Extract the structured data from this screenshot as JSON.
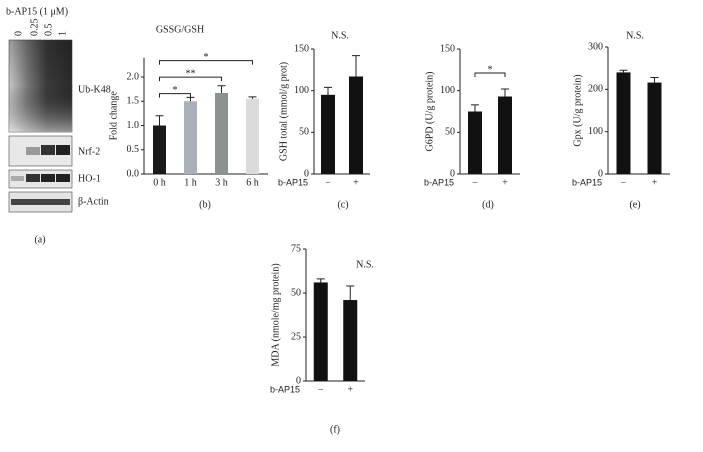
{
  "blot": {
    "treatment": "b-AP15 (1 μM)",
    "doses": [
      "0",
      "0.25",
      "0.5",
      "1"
    ],
    "bands": [
      "Ub-K48",
      "Nrf-2",
      "HO-1",
      "β-Actin"
    ],
    "label": "(a)"
  },
  "chart_data": [
    {
      "type": "bar",
      "title": "GSSG/GSH",
      "ylabel": "Fold change",
      "label": "(b)",
      "categories": [
        "0 h",
        "1 h",
        "3 h",
        "6 h"
      ],
      "values": [
        1.0,
        1.5,
        1.67,
        1.55
      ],
      "errors": [
        0.2,
        0.08,
        0.15,
        0.04
      ],
      "colors": [
        "#1a1a1a",
        "#a9b0b8",
        "#8c9292",
        "#d9dcd8"
      ],
      "ylim": [
        0,
        2.4
      ],
      "yticks": [
        {
          "value": 0,
          "label": "0.0"
        },
        {
          "value": 0.5,
          "label": "0.5"
        },
        {
          "value": 1,
          "label": "1.0"
        },
        {
          "value": 1.5,
          "label": "1.5"
        },
        {
          "value": 2,
          "label": "2.0"
        }
      ],
      "annotations": [
        {
          "text": "*",
          "from": "0 h",
          "to": "1 h"
        },
        {
          "text": "**",
          "from": "0 h",
          "to": "3 h"
        },
        {
          "text": "*",
          "from": "0 h",
          "to": "6 h"
        }
      ]
    },
    {
      "type": "bar",
      "title": "N.S.",
      "ylabel": "GSH total (mmol/g prot)",
      "xlabel": "b-AP15",
      "label": "(c)",
      "categories": [
        "−",
        "+"
      ],
      "values": [
        95,
        117
      ],
      "errors": [
        9,
        25
      ],
      "colors": [
        "#111111",
        "#111111"
      ],
      "ylim": [
        0,
        150
      ],
      "yticks": [
        0,
        50,
        100,
        150
      ]
    },
    {
      "type": "bar",
      "ylabel": "G6PD (U/g protein)",
      "xlabel": "b-AP15",
      "label": "(d)",
      "categories": [
        "−",
        "+"
      ],
      "values": [
        75,
        93
      ],
      "errors": [
        8,
        9
      ],
      "colors": [
        "#111111",
        "#111111"
      ],
      "ylim": [
        0,
        150
      ],
      "yticks": [
        0,
        50,
        100,
        150
      ],
      "annotations": [
        {
          "text": "*",
          "from": "−",
          "to": "+"
        }
      ]
    },
    {
      "type": "bar",
      "title": "N.S.",
      "ylabel": "Gpx (U/g protein)",
      "xlabel": "b-AP15",
      "label": "(e)",
      "categories": [
        "−",
        "+"
      ],
      "values": [
        240,
        216
      ],
      "errors": [
        5,
        12
      ],
      "colors": [
        "#111111",
        "#111111"
      ],
      "ylim": [
        0,
        300
      ],
      "yticks": [
        0,
        100,
        200,
        300
      ]
    },
    {
      "type": "bar",
      "title": "N.S.",
      "ylabel": "MDA (nmole/mg protein)",
      "xlabel": "b-AP15",
      "label": "(f)",
      "categories": [
        "−",
        "+"
      ],
      "values": [
        56,
        46
      ],
      "errors": [
        2,
        8
      ],
      "colors": [
        "#111111",
        "#111111"
      ],
      "ylim": [
        0,
        75
      ],
      "yticks": [
        0,
        25,
        50,
        75
      ]
    }
  ]
}
